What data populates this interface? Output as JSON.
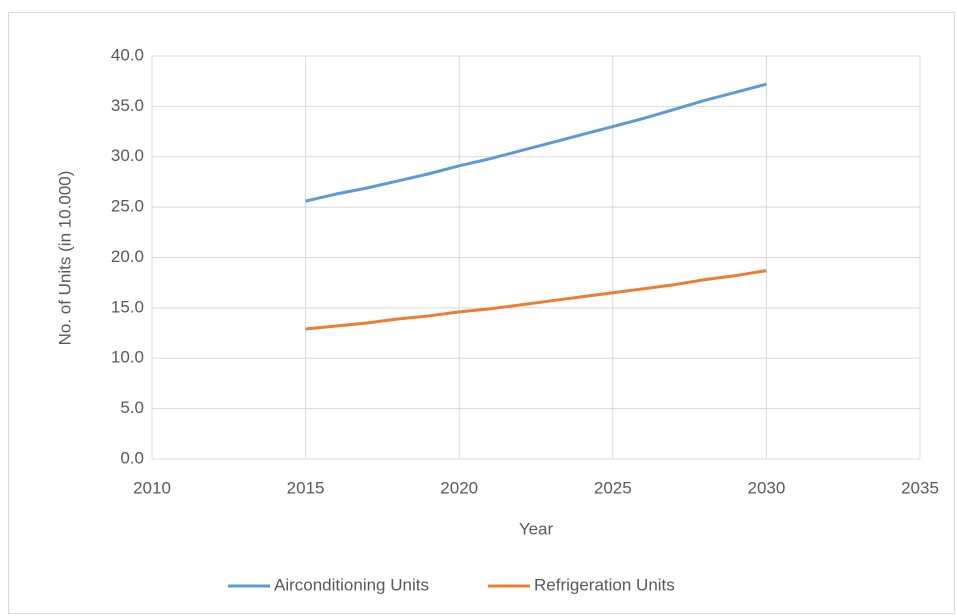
{
  "chart_data": {
    "type": "line",
    "x_label": "Year",
    "y_label": "No. of Units (in 10.000)",
    "x": [
      2015,
      2016,
      2017,
      2018,
      2019,
      2020,
      2021,
      2022,
      2023,
      2024,
      2025,
      2026,
      2027,
      2028,
      2029,
      2030
    ],
    "series": [
      {
        "name": "Airconditioning Units",
        "color": "#5b9bd5",
        "values": [
          25.6,
          26.3,
          26.9,
          27.6,
          28.3,
          29.1,
          29.8,
          30.6,
          31.4,
          32.2,
          33.0,
          33.8,
          34.7,
          35.6,
          36.4,
          37.2
        ]
      },
      {
        "name": "Refrigeration Units",
        "color": "#ed7d31",
        "values": [
          12.9,
          13.2,
          13.5,
          13.9,
          14.2,
          14.6,
          14.9,
          15.3,
          15.7,
          16.1,
          16.5,
          16.9,
          17.3,
          17.8,
          18.2,
          18.7
        ]
      }
    ],
    "xlim": [
      2010,
      2035
    ],
    "xticks": [
      2010,
      2015,
      2020,
      2025,
      2030,
      2035
    ],
    "ylim": [
      0,
      40
    ],
    "yticks": [
      {
        "value": 0,
        "label": "0.0"
      },
      {
        "value": 5,
        "label": "5.0"
      },
      {
        "value": 10,
        "label": "10.0"
      },
      {
        "value": 15,
        "label": "15.0"
      },
      {
        "value": 20,
        "label": "20.0"
      },
      {
        "value": 25,
        "label": "25.0"
      },
      {
        "value": 30,
        "label": "30.0"
      },
      {
        "value": 35,
        "label": "35.0"
      },
      {
        "value": 40,
        "label": "40.0"
      }
    ],
    "grid": true,
    "legend": "bottom"
  }
}
